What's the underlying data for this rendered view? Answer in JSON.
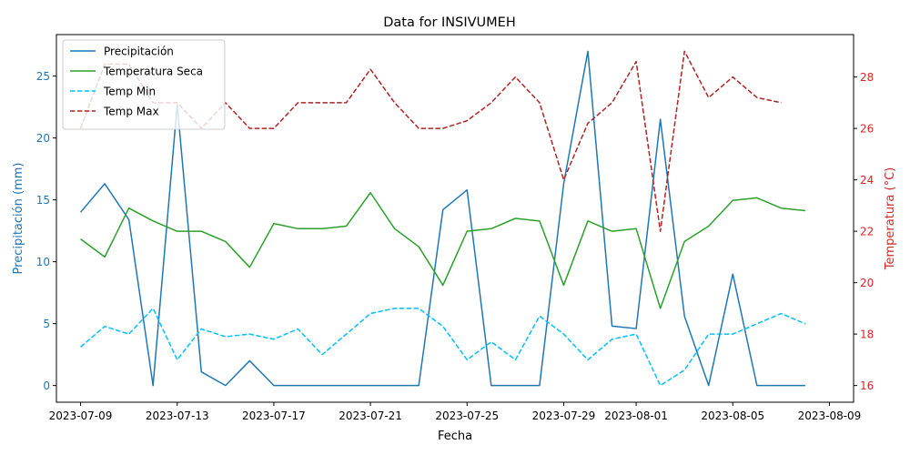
{
  "chart_data": {
    "type": "line",
    "title": "Data for INSIVUMEH",
    "xlabel": "Fecha",
    "ylabel_left": "Precipitación (mm)",
    "ylabel_right": "Temperatura (°C)",
    "colors": {
      "left_axis": "#1f77b4",
      "right_axis": "#d62728"
    },
    "x_ticks": [
      "2023-07-09",
      "2023-07-13",
      "2023-07-17",
      "2023-07-21",
      "2023-07-25",
      "2023-07-29",
      "2023-08-01",
      "2023-08-05",
      "2023-08-09"
    ],
    "y_left_ticks": [
      "0",
      "5",
      "10",
      "15",
      "20",
      "25"
    ],
    "y_right_ticks": [
      "16",
      "18",
      "20",
      "22",
      "24",
      "26",
      "28"
    ],
    "x_range": [
      "2023-07-08",
      "2023-08-10"
    ],
    "y_left_range": [
      -1.35,
      28.35
    ],
    "y_right_range": [
      15.35,
      29.65
    ],
    "dates": [
      "2023-07-09",
      "2023-07-10",
      "2023-07-11",
      "2023-07-12",
      "2023-07-13",
      "2023-07-14",
      "2023-07-15",
      "2023-07-16",
      "2023-07-17",
      "2023-07-18",
      "2023-07-19",
      "2023-07-20",
      "2023-07-21",
      "2023-07-22",
      "2023-07-23",
      "2023-07-24",
      "2023-07-25",
      "2023-07-26",
      "2023-07-27",
      "2023-07-28",
      "2023-07-29",
      "2023-07-30",
      "2023-07-31",
      "2023-08-01",
      "2023-08-02",
      "2023-08-03",
      "2023-08-04",
      "2023-08-05",
      "2023-08-06",
      "2023-08-07",
      "2023-08-08"
    ],
    "legend_position": "top-left",
    "series": [
      {
        "name": "Precipitación",
        "axis": "left",
        "color": "#1f77b4",
        "dash": "solid",
        "values": [
          14.0,
          16.3,
          13.4,
          0.0,
          22.7,
          1.1,
          0.0,
          2.0,
          0.0,
          0.0,
          0.0,
          0.0,
          0.0,
          0.0,
          0.0,
          14.2,
          15.8,
          0.0,
          0.0,
          0.0,
          16.3,
          27.0,
          4.8,
          4.6,
          21.5,
          5.6,
          0.0,
          9.0,
          0.0,
          0.0,
          0.0
        ]
      },
      {
        "name": "Temperatura Seca",
        "axis": "right",
        "color": "#2ca02c",
        "dash": "solid",
        "values": [
          21.7,
          21.0,
          22.9,
          22.4,
          22.0,
          22.0,
          21.6,
          20.6,
          22.3,
          22.1,
          22.1,
          22.2,
          23.5,
          22.1,
          21.4,
          19.9,
          22.0,
          22.1,
          22.5,
          22.4,
          19.9,
          22.4,
          22.0,
          22.1,
          19.0,
          21.6,
          22.2,
          23.2,
          23.3,
          22.9,
          22.8
        ]
      },
      {
        "name": "Temp Min",
        "axis": "right",
        "color": "#00bfff",
        "dash": "dashed",
        "values": [
          17.5,
          18.3,
          18.0,
          19.0,
          17.0,
          18.2,
          17.9,
          18.0,
          17.8,
          18.2,
          17.2,
          18.0,
          18.8,
          19.0,
          19.0,
          18.3,
          17.0,
          17.7,
          17.0,
          18.7,
          18.0,
          17.0,
          17.8,
          18.0,
          16.0,
          16.6,
          18.0,
          18.0,
          18.4,
          18.8,
          18.4
        ]
      },
      {
        "name": "Temp Max",
        "axis": "right",
        "color": "#b22222",
        "dash": "dashed",
        "values": [
          26.0,
          28.5,
          28.5,
          27.0,
          27.0,
          26.0,
          27.0,
          26.0,
          26.0,
          27.0,
          27.0,
          27.0,
          28.3,
          27.0,
          26.0,
          26.0,
          26.3,
          27.0,
          28.0,
          27.0,
          24.0,
          26.2,
          27.0,
          28.6,
          22.0,
          29.0,
          27.2,
          28.0,
          27.2,
          27.0,
          null
        ]
      }
    ]
  }
}
